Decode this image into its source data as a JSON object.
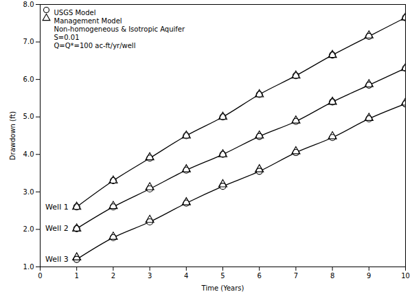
{
  "chart_data": {
    "type": "line",
    "x_label": "Time (Years)",
    "y_label": "Drawdown (ft)",
    "xlim": [
      0,
      10
    ],
    "xticks": [
      0,
      1,
      2,
      3,
      4,
      5,
      6,
      7,
      8,
      9,
      10
    ],
    "ylim": [
      1,
      8
    ],
    "yticks": [
      {
        "value": 1,
        "label": "1.0"
      },
      {
        "value": 2,
        "label": "2.0"
      },
      {
        "value": 3,
        "label": "3.0"
      },
      {
        "value": 4,
        "label": "4.0"
      },
      {
        "value": 5,
        "label": "5.0"
      },
      {
        "value": 6,
        "label": "6.0"
      },
      {
        "value": 7,
        "label": "7.0"
      },
      {
        "value": 8,
        "label": "8.0"
      }
    ],
    "grid": false,
    "legend": "top-left",
    "annotations": [
      "Non-homogeneous & Isotropic Aquifer",
      "S=0.01",
      "Q=Q*=100 ac-ft/yr/well"
    ],
    "x": [
      1,
      2,
      3,
      4,
      5,
      6,
      7,
      8,
      9,
      10
    ],
    "series": [
      {
        "name": "USGS Model",
        "well": "Well 1",
        "color": "#000000",
        "marker": "circle",
        "line_style": "solid",
        "values": [
          2.6,
          3.3,
          3.9,
          4.5,
          5.0,
          5.6,
          6.1,
          6.65,
          7.15,
          7.65
        ]
      },
      {
        "name": "Management Model",
        "well": "Well 1",
        "color": "#000000",
        "marker": "triangle",
        "line_style": "none",
        "values": [
          2.6,
          3.3,
          3.92,
          4.5,
          5.0,
          5.6,
          6.1,
          6.65,
          7.17,
          7.65
        ]
      },
      {
        "name": "USGS Model",
        "well": "Well 2",
        "color": "#000000",
        "marker": "circle",
        "line_style": "solid",
        "values": [
          2.02,
          2.6,
          3.08,
          3.58,
          4.0,
          4.48,
          4.88,
          5.4,
          5.85,
          6.3
        ]
      },
      {
        "name": "Management Model",
        "well": "Well 2",
        "color": "#000000",
        "marker": "triangle",
        "line_style": "none",
        "values": [
          2.02,
          2.62,
          3.12,
          3.6,
          4.0,
          4.5,
          4.9,
          5.4,
          5.87,
          6.3
        ]
      },
      {
        "name": "USGS Model",
        "well": "Well 3",
        "color": "#000000",
        "marker": "circle",
        "line_style": "solid",
        "values": [
          1.2,
          1.78,
          2.2,
          2.7,
          3.15,
          3.55,
          4.05,
          4.45,
          4.95,
          5.35
        ]
      },
      {
        "name": "Management Model",
        "well": "Well 3",
        "color": "#000000",
        "marker": "triangle",
        "line_style": "none",
        "values": [
          1.25,
          1.8,
          2.25,
          2.72,
          3.2,
          3.6,
          4.08,
          4.48,
          4.97,
          5.38
        ]
      }
    ]
  }
}
